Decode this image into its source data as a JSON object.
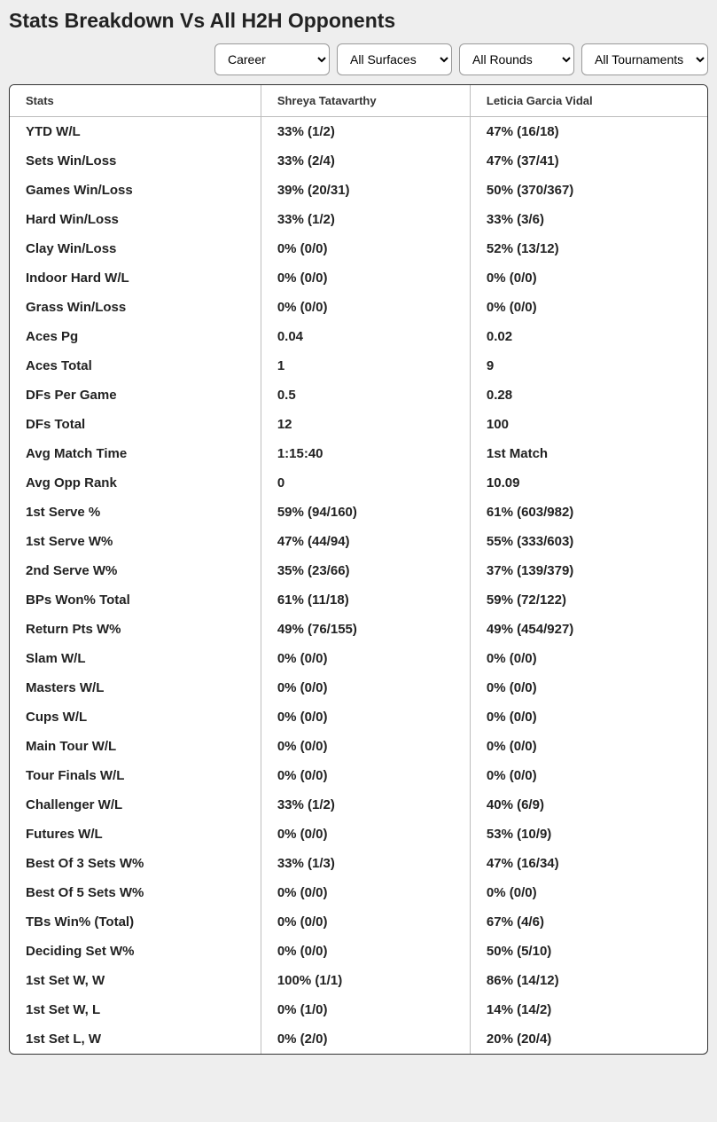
{
  "title": "Stats Breakdown Vs All H2H Opponents",
  "filters": {
    "timeframe": "Career",
    "surface": "All Surfaces",
    "round": "All Rounds",
    "tournament": "All Tournaments"
  },
  "columns": {
    "stats": "Stats",
    "player1": "Shreya Tatavarthy",
    "player2": "Leticia Garcia Vidal"
  },
  "rows": [
    {
      "stat": "YTD W/L",
      "p1": "33% (1/2)",
      "p2": "47% (16/18)"
    },
    {
      "stat": "Sets Win/Loss",
      "p1": "33% (2/4)",
      "p2": "47% (37/41)"
    },
    {
      "stat": "Games Win/Loss",
      "p1": "39% (20/31)",
      "p2": "50% (370/367)"
    },
    {
      "stat": "Hard Win/Loss",
      "p1": "33% (1/2)",
      "p2": "33% (3/6)"
    },
    {
      "stat": "Clay Win/Loss",
      "p1": "0% (0/0)",
      "p2": "52% (13/12)"
    },
    {
      "stat": "Indoor Hard W/L",
      "p1": "0% (0/0)",
      "p2": "0% (0/0)"
    },
    {
      "stat": "Grass Win/Loss",
      "p1": "0% (0/0)",
      "p2": "0% (0/0)"
    },
    {
      "stat": "Aces Pg",
      "p1": "0.04",
      "p2": "0.02"
    },
    {
      "stat": "Aces Total",
      "p1": "1",
      "p2": "9"
    },
    {
      "stat": "DFs Per Game",
      "p1": "0.5",
      "p2": "0.28"
    },
    {
      "stat": "DFs Total",
      "p1": "12",
      "p2": "100"
    },
    {
      "stat": "Avg Match Time",
      "p1": "1:15:40",
      "p2": "1st Match"
    },
    {
      "stat": "Avg Opp Rank",
      "p1": "0",
      "p2": "10.09"
    },
    {
      "stat": "1st Serve %",
      "p1": "59% (94/160)",
      "p2": "61% (603/982)"
    },
    {
      "stat": "1st Serve W%",
      "p1": "47% (44/94)",
      "p2": "55% (333/603)"
    },
    {
      "stat": "2nd Serve W%",
      "p1": "35% (23/66)",
      "p2": "37% (139/379)"
    },
    {
      "stat": "BPs Won% Total",
      "p1": "61% (11/18)",
      "p2": "59% (72/122)"
    },
    {
      "stat": "Return Pts W%",
      "p1": "49% (76/155)",
      "p2": "49% (454/927)"
    },
    {
      "stat": "Slam W/L",
      "p1": "0% (0/0)",
      "p2": "0% (0/0)"
    },
    {
      "stat": "Masters W/L",
      "p1": "0% (0/0)",
      "p2": "0% (0/0)"
    },
    {
      "stat": "Cups W/L",
      "p1": "0% (0/0)",
      "p2": "0% (0/0)"
    },
    {
      "stat": "Main Tour W/L",
      "p1": "0% (0/0)",
      "p2": "0% (0/0)"
    },
    {
      "stat": "Tour Finals W/L",
      "p1": "0% (0/0)",
      "p2": "0% (0/0)"
    },
    {
      "stat": "Challenger W/L",
      "p1": "33% (1/2)",
      "p2": "40% (6/9)"
    },
    {
      "stat": "Futures W/L",
      "p1": "0% (0/0)",
      "p2": "53% (10/9)"
    },
    {
      "stat": "Best Of 3 Sets W%",
      "p1": "33% (1/3)",
      "p2": "47% (16/34)"
    },
    {
      "stat": "Best Of 5 Sets W%",
      "p1": "0% (0/0)",
      "p2": "0% (0/0)"
    },
    {
      "stat": "TBs Win% (Total)",
      "p1": "0% (0/0)",
      "p2": "67% (4/6)"
    },
    {
      "stat": "Deciding Set W%",
      "p1": "0% (0/0)",
      "p2": "50% (5/10)"
    },
    {
      "stat": "1st Set W, W",
      "p1": "100% (1/1)",
      "p2": "86% (14/12)"
    },
    {
      "stat": "1st Set W, L",
      "p1": "0% (1/0)",
      "p2": "14% (14/2)"
    },
    {
      "stat": "1st Set L, W",
      "p1": "0% (2/0)",
      "p2": "20% (20/4)"
    }
  ]
}
